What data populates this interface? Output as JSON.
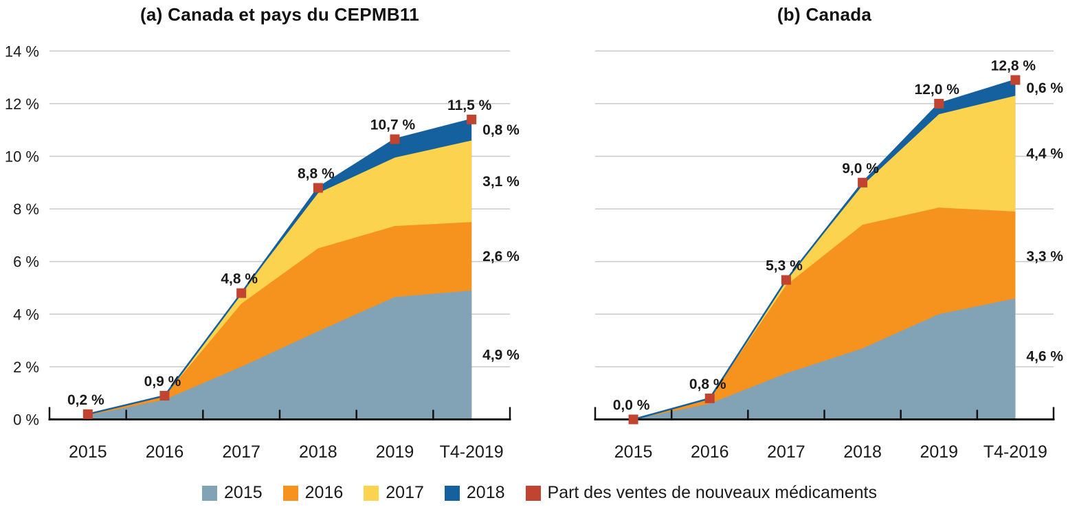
{
  "legend": {
    "items": [
      {
        "label": "2015",
        "color": "#81a3b5"
      },
      {
        "label": "2016",
        "color": "#f6921e"
      },
      {
        "label": "2017",
        "color": "#fcd34e"
      },
      {
        "label": "2018",
        "color": "#15609e"
      },
      {
        "label": "Part des ventes de nouveaux médicaments",
        "color": "#c0442f"
      }
    ]
  },
  "chart_data": [
    {
      "type": "area",
      "stacked": true,
      "title": "(a) Canada et pays du CEPMB11",
      "categories": [
        "2015",
        "2016",
        "2017",
        "2018",
        "2019",
        "T4-2019"
      ],
      "ylabel": "",
      "ylim": [
        0,
        14
      ],
      "ytick_step": 2,
      "ytick_suffix": " %",
      "yticks_visible": true,
      "grid": true,
      "series": [
        {
          "name": "2015",
          "color": "#81a3b5",
          "values": [
            0.15,
            0.75,
            2.0,
            3.35,
            4.65,
            4.9
          ]
        },
        {
          "name": "2016",
          "color": "#f6921e",
          "values": [
            0.05,
            0.15,
            2.4,
            3.15,
            2.7,
            2.6
          ]
        },
        {
          "name": "2017",
          "color": "#fcd34e",
          "values": [
            0.0,
            0.0,
            0.4,
            2.1,
            2.6,
            3.1
          ]
        },
        {
          "name": "2018",
          "color": "#15609e",
          "values": [
            0.0,
            0.0,
            0.0,
            0.2,
            0.7,
            0.8
          ]
        }
      ],
      "marker_series": {
        "name": "Part des ventes de nouveaux médicaments",
        "color": "#c0442f"
      },
      "totals": [
        0.2,
        0.9,
        4.8,
        8.8,
        10.7,
        11.5
      ],
      "total_labels": [
        "0,2 %",
        "0,9 %",
        "4,8 %",
        "8,8 %",
        "10,7 %",
        "11,5 %"
      ],
      "side_labels": [
        {
          "text": "0,8 %",
          "value": 11.0
        },
        {
          "text": "3,1 %",
          "value": 9.05
        },
        {
          "text": "2,6 %",
          "value": 6.2
        },
        {
          "text": "4,9 %",
          "value": 2.45
        }
      ]
    },
    {
      "type": "area",
      "stacked": true,
      "title": "(b) Canada",
      "categories": [
        "2015",
        "2016",
        "2017",
        "2018",
        "2019",
        "T4-2019"
      ],
      "ylabel": "",
      "ylim": [
        0,
        14
      ],
      "ytick_step": 2,
      "ytick_suffix": " %",
      "yticks_visible": false,
      "grid": true,
      "series": [
        {
          "name": "2015",
          "color": "#81a3b5",
          "values": [
            0.0,
            0.6,
            1.75,
            2.7,
            4.0,
            4.6
          ]
        },
        {
          "name": "2016",
          "color": "#f6921e",
          "values": [
            0.0,
            0.2,
            3.35,
            4.7,
            4.05,
            3.3
          ]
        },
        {
          "name": "2017",
          "color": "#fcd34e",
          "values": [
            0.0,
            0.0,
            0.2,
            1.5,
            3.55,
            4.4
          ]
        },
        {
          "name": "2018",
          "color": "#15609e",
          "values": [
            0.0,
            0.0,
            0.0,
            0.1,
            0.4,
            0.6
          ]
        }
      ],
      "marker_series": {
        "name": "Part des ventes de nouveaux médicaments",
        "color": "#c0442f"
      },
      "totals": [
        0.0,
        0.8,
        5.3,
        9.0,
        12.0,
        12.8
      ],
      "total_labels": [
        "0,0 %",
        "0,8 %",
        "5,3 %",
        "9,0 %",
        "12,0 %",
        "12,8 %"
      ],
      "side_labels": [
        {
          "text": "0,6 %",
          "value": 12.6
        },
        {
          "text": "4,4 %",
          "value": 10.1
        },
        {
          "text": "3,3 %",
          "value": 6.2
        },
        {
          "text": "4,6 %",
          "value": 2.4
        }
      ]
    }
  ]
}
